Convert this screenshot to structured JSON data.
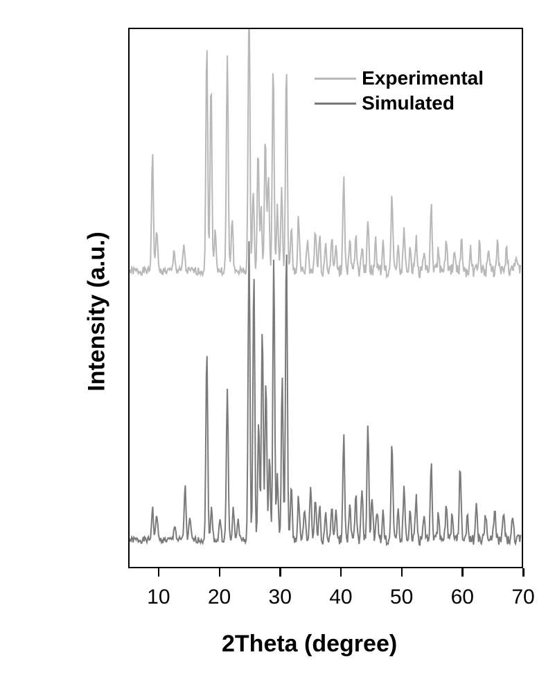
{
  "chart": {
    "type": "line",
    "xlabel": "2Theta (degree)",
    "ylabel": "Intensity (a.u.)",
    "label_fontsize": 34,
    "tick_fontsize": 30,
    "background_color": "#ffffff",
    "border_color": "#000000",
    "border_width": 2.5,
    "xlim": [
      5,
      70
    ],
    "xticks": [
      10,
      20,
      30,
      40,
      50,
      60,
      70
    ],
    "xtick_labels": [
      "10",
      "20",
      "30",
      "40",
      "50",
      "60",
      "70"
    ],
    "legend_position": "top-right",
    "series": [
      {
        "name": "Experimental",
        "color": "#b8b8b8",
        "line_width": 2,
        "baseline_y": 0.55,
        "noise_amplitude": 0.015,
        "peaks": [
          {
            "x": 8.8,
            "h": 0.22
          },
          {
            "x": 9.5,
            "h": 0.08
          },
          {
            "x": 12.4,
            "h": 0.04
          },
          {
            "x": 14.0,
            "h": 0.05
          },
          {
            "x": 17.8,
            "h": 0.42
          },
          {
            "x": 18.5,
            "h": 0.35
          },
          {
            "x": 19.2,
            "h": 0.08
          },
          {
            "x": 21.2,
            "h": 0.4
          },
          {
            "x": 22.0,
            "h": 0.1
          },
          {
            "x": 24.8,
            "h": 0.5
          },
          {
            "x": 25.5,
            "h": 0.15
          },
          {
            "x": 26.3,
            "h": 0.22
          },
          {
            "x": 26.8,
            "h": 0.12
          },
          {
            "x": 27.5,
            "h": 0.25
          },
          {
            "x": 28.0,
            "h": 0.18
          },
          {
            "x": 28.8,
            "h": 0.38
          },
          {
            "x": 29.5,
            "h": 0.12
          },
          {
            "x": 30.2,
            "h": 0.15
          },
          {
            "x": 31.0,
            "h": 0.38
          },
          {
            "x": 31.8,
            "h": 0.08
          },
          {
            "x": 33.0,
            "h": 0.1
          },
          {
            "x": 34.5,
            "h": 0.06
          },
          {
            "x": 35.8,
            "h": 0.08
          },
          {
            "x": 36.5,
            "h": 0.06
          },
          {
            "x": 37.5,
            "h": 0.05
          },
          {
            "x": 38.5,
            "h": 0.06
          },
          {
            "x": 39.2,
            "h": 0.04
          },
          {
            "x": 40.5,
            "h": 0.18
          },
          {
            "x": 41.5,
            "h": 0.05
          },
          {
            "x": 42.5,
            "h": 0.06
          },
          {
            "x": 43.5,
            "h": 0.05
          },
          {
            "x": 44.5,
            "h": 0.1
          },
          {
            "x": 45.8,
            "h": 0.06
          },
          {
            "x": 47.0,
            "h": 0.05
          },
          {
            "x": 48.5,
            "h": 0.14
          },
          {
            "x": 49.5,
            "h": 0.05
          },
          {
            "x": 50.5,
            "h": 0.08
          },
          {
            "x": 51.5,
            "h": 0.05
          },
          {
            "x": 52.5,
            "h": 0.06
          },
          {
            "x": 53.8,
            "h": 0.04
          },
          {
            "x": 55.0,
            "h": 0.12
          },
          {
            "x": 56.2,
            "h": 0.04
          },
          {
            "x": 57.5,
            "h": 0.05
          },
          {
            "x": 58.8,
            "h": 0.04
          },
          {
            "x": 60.0,
            "h": 0.06
          },
          {
            "x": 61.5,
            "h": 0.04
          },
          {
            "x": 63.0,
            "h": 0.05
          },
          {
            "x": 64.5,
            "h": 0.04
          },
          {
            "x": 66.0,
            "h": 0.05
          },
          {
            "x": 67.5,
            "h": 0.04
          },
          {
            "x": 69.0,
            "h": 0.03
          }
        ]
      },
      {
        "name": "Simulated",
        "color": "#7a7a7a",
        "line_width": 2,
        "baseline_y": 0.05,
        "noise_amplitude": 0.012,
        "peaks": [
          {
            "x": 8.8,
            "h": 0.06
          },
          {
            "x": 9.5,
            "h": 0.05
          },
          {
            "x": 12.5,
            "h": 0.03
          },
          {
            "x": 14.2,
            "h": 0.1
          },
          {
            "x": 15.0,
            "h": 0.04
          },
          {
            "x": 17.8,
            "h": 0.35
          },
          {
            "x": 18.6,
            "h": 0.06
          },
          {
            "x": 20.0,
            "h": 0.04
          },
          {
            "x": 21.2,
            "h": 0.28
          },
          {
            "x": 22.2,
            "h": 0.06
          },
          {
            "x": 23.0,
            "h": 0.04
          },
          {
            "x": 24.8,
            "h": 0.55
          },
          {
            "x": 25.6,
            "h": 0.5
          },
          {
            "x": 26.4,
            "h": 0.22
          },
          {
            "x": 27.0,
            "h": 0.4
          },
          {
            "x": 27.6,
            "h": 0.3
          },
          {
            "x": 28.2,
            "h": 0.15
          },
          {
            "x": 28.9,
            "h": 0.52
          },
          {
            "x": 29.5,
            "h": 0.12
          },
          {
            "x": 30.3,
            "h": 0.3
          },
          {
            "x": 31.0,
            "h": 0.55
          },
          {
            "x": 31.8,
            "h": 0.1
          },
          {
            "x": 33.0,
            "h": 0.08
          },
          {
            "x": 34.0,
            "h": 0.06
          },
          {
            "x": 35.0,
            "h": 0.1
          },
          {
            "x": 35.8,
            "h": 0.08
          },
          {
            "x": 36.5,
            "h": 0.06
          },
          {
            "x": 37.5,
            "h": 0.05
          },
          {
            "x": 38.5,
            "h": 0.06
          },
          {
            "x": 39.2,
            "h": 0.05
          },
          {
            "x": 40.5,
            "h": 0.2
          },
          {
            "x": 41.5,
            "h": 0.06
          },
          {
            "x": 42.5,
            "h": 0.08
          },
          {
            "x": 43.5,
            "h": 0.1
          },
          {
            "x": 44.5,
            "h": 0.22
          },
          {
            "x": 45.2,
            "h": 0.08
          },
          {
            "x": 46.0,
            "h": 0.06
          },
          {
            "x": 47.0,
            "h": 0.05
          },
          {
            "x": 48.5,
            "h": 0.18
          },
          {
            "x": 49.5,
            "h": 0.06
          },
          {
            "x": 50.5,
            "h": 0.1
          },
          {
            "x": 51.5,
            "h": 0.06
          },
          {
            "x": 52.5,
            "h": 0.08
          },
          {
            "x": 53.8,
            "h": 0.05
          },
          {
            "x": 55.0,
            "h": 0.14
          },
          {
            "x": 56.2,
            "h": 0.05
          },
          {
            "x": 57.5,
            "h": 0.06
          },
          {
            "x": 58.5,
            "h": 0.05
          },
          {
            "x": 59.8,
            "h": 0.14
          },
          {
            "x": 61.0,
            "h": 0.05
          },
          {
            "x": 62.5,
            "h": 0.06
          },
          {
            "x": 64.0,
            "h": 0.05
          },
          {
            "x": 65.5,
            "h": 0.06
          },
          {
            "x": 67.0,
            "h": 0.05
          },
          {
            "x": 68.5,
            "h": 0.04
          }
        ]
      }
    ]
  }
}
